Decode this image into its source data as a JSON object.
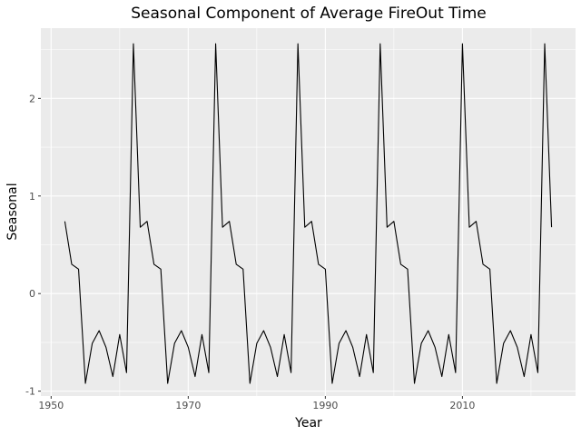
{
  "chart_data": {
    "type": "line",
    "title": "Seasonal Component of Average FireOut Time",
    "xlabel": "Year",
    "ylabel": "Seasonal",
    "xlim": [
      1948.5,
      2026.5
    ],
    "ylim": [
      -1.05,
      2.72
    ],
    "x_ticks": [
      1950,
      1970,
      1990,
      2010
    ],
    "y_ticks": [
      -1,
      0,
      1,
      2
    ],
    "grid": true,
    "line_color": "#000000",
    "panel_color": "#ebebeb",
    "grid_color": "#ffffff",
    "x_start": 1952,
    "seasonal_pattern": [
      0.74,
      0.3,
      0.25,
      -0.92,
      -0.51,
      -0.38,
      -0.55,
      -0.85,
      -0.42,
      -0.81,
      2.56,
      0.68,
      0.74,
      0.3,
      0.25,
      -0.92,
      -0.51,
      -0.38,
      -0.55,
      -0.85,
      -0.42,
      -0.81
    ],
    "series": [
      {
        "x": [
          1952,
          1953,
          1954,
          1955,
          1956,
          1957,
          1958,
          1959,
          1960,
          1961,
          1962,
          1963,
          1964,
          1965,
          1966,
          1967,
          1968,
          1969,
          1970,
          1971,
          1972,
          1973,
          1974,
          1975,
          1976,
          1977,
          1978,
          1979,
          1980,
          1981,
          1982,
          1983,
          1984,
          1985,
          1986,
          1987,
          1988,
          1989,
          1990,
          1991,
          1992,
          1993,
          1994,
          1995,
          1996,
          1997,
          1998,
          1999,
          2000,
          2001,
          2002,
          2003,
          2004,
          2005,
          2006,
          2007,
          2008,
          2009,
          2010,
          2011,
          2012,
          2013,
          2014,
          2015,
          2016,
          2017,
          2018,
          2019,
          2020,
          2021,
          2022,
          2023
        ],
        "y": [
          0.74,
          0.3,
          0.25,
          -0.92,
          -0.51,
          -0.38,
          -0.55,
          -0.85,
          -0.42,
          -0.81,
          2.56,
          0.68,
          0.74,
          0.3,
          0.25,
          -0.92,
          -0.51,
          -0.38,
          -0.55,
          -0.85,
          -0.42,
          -0.81,
          2.56,
          0.68,
          0.74,
          0.3,
          0.25,
          -0.92,
          -0.51,
          -0.38,
          -0.55,
          -0.85,
          -0.42,
          -0.81,
          2.56,
          0.68,
          0.74,
          0.3,
          0.25,
          -0.92,
          -0.51,
          -0.38,
          -0.55,
          -0.85,
          -0.42,
          -0.81,
          2.56,
          0.68,
          0.74,
          0.3,
          0.25,
          -0.92,
          -0.51,
          -0.38,
          -0.55,
          -0.85,
          -0.42,
          -0.81,
          2.56,
          0.68,
          0.74,
          0.3,
          0.25,
          -0.92,
          -0.51,
          -0.38,
          -0.55,
          -0.85,
          -0.42,
          -0.81,
          2.56,
          0.68
        ]
      }
    ]
  }
}
